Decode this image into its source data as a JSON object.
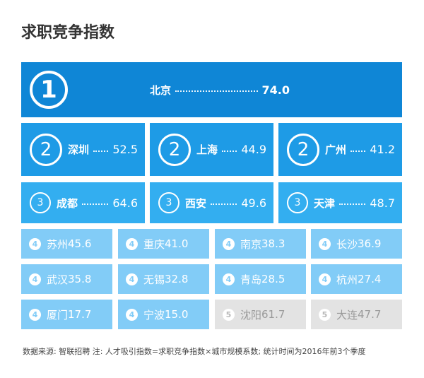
{
  "title": "求职竞争指数",
  "tier1": [
    {
      "rank": "1",
      "city": "北京",
      "value": "74.0"
    }
  ],
  "tier2": [
    {
      "rank": "2",
      "city": "深圳",
      "value": "52.5"
    },
    {
      "rank": "2",
      "city": "上海",
      "value": "44.9"
    },
    {
      "rank": "2",
      "city": "广州",
      "value": "41.2"
    }
  ],
  "tier3": [
    {
      "rank": "3",
      "city": "成都",
      "value": "64.6"
    },
    {
      "rank": "3",
      "city": "西安",
      "value": "49.6"
    },
    {
      "rank": "3",
      "city": "天津",
      "value": "48.7"
    }
  ],
  "tier4": [
    {
      "rank": "4",
      "city": "苏州",
      "value": "45.6"
    },
    {
      "rank": "4",
      "city": "重庆",
      "value": "41.0"
    },
    {
      "rank": "4",
      "city": "南京",
      "value": "38.3"
    },
    {
      "rank": "4",
      "city": "长沙",
      "value": "36.9"
    },
    {
      "rank": "4",
      "city": "武汉",
      "value": "35.8"
    },
    {
      "rank": "4",
      "city": "无锡",
      "value": "32.8"
    },
    {
      "rank": "4",
      "city": "青岛",
      "value": "28.5"
    },
    {
      "rank": "4",
      "city": "杭州",
      "value": "27.4"
    },
    {
      "rank": "4",
      "city": "厦门",
      "value": "17.7"
    },
    {
      "rank": "4",
      "city": "宁波",
      "value": "15.0"
    }
  ],
  "tier5": [
    {
      "rank": "5",
      "city": "沈阳",
      "value": "61.7"
    },
    {
      "rank": "5",
      "city": "大连",
      "value": "47.7"
    }
  ],
  "footer": "数据来源: 智联招聘 注: 人才吸引指数=求职竞争指数×城市规模系数; 统计时间为2016年前3个季度",
  "colors": {
    "tier1": "#0f86d6",
    "tier2": "#1e9be6",
    "tier3": "#33aef0",
    "tier4": "#82ccf7",
    "tier5": "#e3e3e3"
  }
}
